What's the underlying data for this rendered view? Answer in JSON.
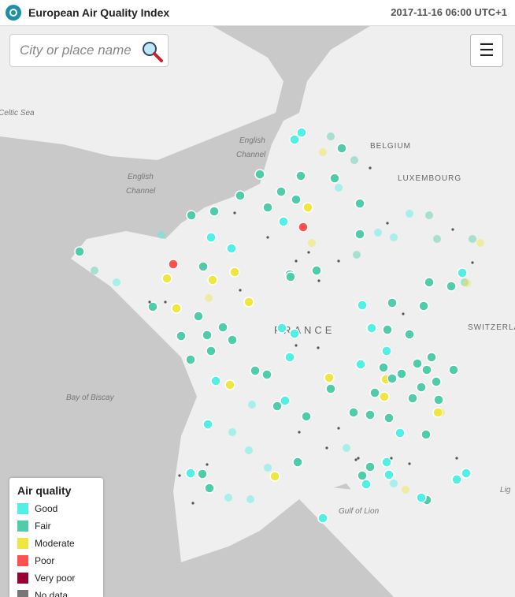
{
  "header": {
    "title": "European Air Quality Index",
    "timestamp": "2017-11-16 06:00 UTC+1",
    "logo_icon": "aqi-logo-icon"
  },
  "search": {
    "placeholder": "City or place name",
    "icon": "search-icon"
  },
  "menu": {
    "icon": "hamburger-menu-icon"
  },
  "map_labels": {
    "celtic_sea": "Celtic Sea",
    "english_channel_1": "English",
    "english_channel_2": "Channel",
    "english_channel_3": "English",
    "english_channel_4": "Channel",
    "belgium": "BELGIUM",
    "luxembourg": "LUXEMBOURG",
    "france": "FRANCE",
    "switzerland": "SWITZERLA",
    "bay_of_biscay": "Bay of Biscay",
    "gulf_of_lion": "Gulf of Lion",
    "lig": "Lig"
  },
  "legend": {
    "title": "Air quality",
    "items": [
      {
        "label": "Good",
        "color": "#50f0e6"
      },
      {
        "label": "Fair",
        "color": "#50ccaa"
      },
      {
        "label": "Moderate",
        "color": "#f0e641"
      },
      {
        "label": "Poor",
        "color": "#ff5050"
      },
      {
        "label": "Very poor",
        "color": "#960032"
      },
      {
        "label": "No data",
        "color": "#777777"
      }
    ]
  },
  "colors": {
    "good": "#50f0e6",
    "fair": "#50ccaa",
    "moderate": "#f0e641",
    "poor": "#ff5050",
    "land": "#efefef",
    "sea": "#c9c9c9"
  }
}
